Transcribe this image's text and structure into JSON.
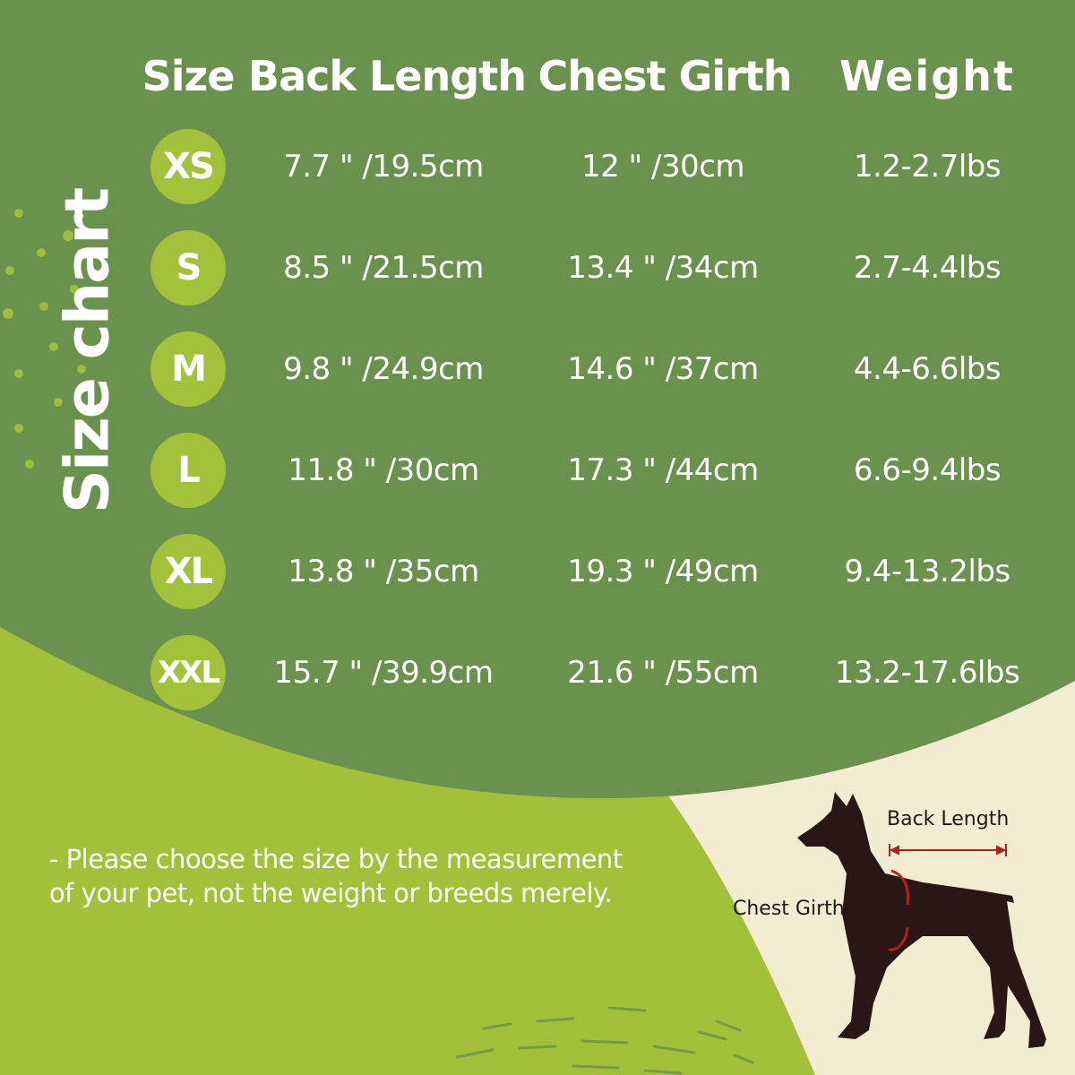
{
  "title": "Size chart",
  "headers": {
    "size": "Size",
    "back_length": "Back Length",
    "chest_girth": "Chest Girth",
    "weight": "Weight"
  },
  "rows": [
    {
      "size": "XS",
      "back_length": "7.7 \" /19.5cm",
      "chest_girth": "12 \" /30cm",
      "weight": "1.2-2.7lbs"
    },
    {
      "size": "S",
      "back_length": "8.5 \" /21.5cm",
      "chest_girth": "13.4 \" /34cm",
      "weight": "2.7-4.4lbs"
    },
    {
      "size": "M",
      "back_length": "9.8 \" /24.9cm",
      "chest_girth": "14.6 \" /37cm",
      "weight": "4.4-6.6lbs"
    },
    {
      "size": "L",
      "back_length": "11.8 \" /30cm",
      "chest_girth": "17.3 \" /44cm",
      "weight": "6.6-9.4lbs"
    },
    {
      "size": "XL",
      "back_length": "13.8 \" /35cm",
      "chest_girth": "19.3 \" /49cm",
      "weight": "9.4-13.2lbs"
    },
    {
      "size": "XXL",
      "back_length": "15.7 \" /39.9cm",
      "chest_girth": "21.6 \" /55cm",
      "weight": "13.2-17.6lbs"
    }
  ],
  "note": {
    "line1": "- Please choose the size by the measurement",
    "line2": "of your pet, not the weight or breeds merely."
  },
  "diagram": {
    "back_length_label": "Back Length",
    "chest_girth_label": "Chest Girth",
    "icon": "dog-silhouette-icon"
  },
  "colors": {
    "dark_green": "#6a914d",
    "light_green": "#a3c23b",
    "cream": "#f3ecd3",
    "dog": "#2a1614",
    "arrow": "#b3201c"
  }
}
